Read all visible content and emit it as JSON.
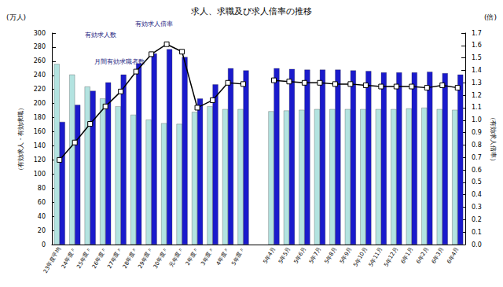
{
  "chart_data": {
    "type": "bar",
    "title": "求人、求職及び求人倍率の推移",
    "y_unit": "(万人)",
    "y2_unit": "(倍)",
    "ylabel": "（有効求人・有効求職）",
    "y2label": "（有効求人倍率）",
    "categories": [
      "23年度平均",
      "24年度〃",
      "25年度〃",
      "26年度〃",
      "27年度〃",
      "28年度〃",
      "29年度〃",
      "30年度〃",
      "元年度〃",
      "2年度〃",
      "3年度〃",
      "4年度〃",
      "5年度〃",
      null,
      "5年4月",
      "5年5月",
      "5年6月",
      "5年7月",
      "5年8月",
      "5年9月",
      "5年10月",
      "5年11月",
      "5年12月",
      "6年1月",
      "6年2月",
      "6年3月",
      "6年4月"
    ],
    "series": [
      {
        "name": "月間有効求職者数",
        "type": "bar",
        "color": "#b3e3e0",
        "values": [
          256,
          241,
          224,
          207,
          196,
          184,
          177,
          172,
          171,
          188,
          196,
          192,
          192,
          null,
          189,
          190,
          191,
          192,
          192,
          192,
          192,
          192,
          192,
          193,
          194,
          192,
          191
        ]
      },
      {
        "name": "有効求人数",
        "type": "bar",
        "color": "#1a1acc",
        "values": [
          174,
          198,
          218,
          230,
          241,
          257,
          271,
          277,
          266,
          207,
          227,
          250,
          247,
          null,
          250,
          249,
          248,
          248,
          248,
          247,
          246,
          244,
          244,
          244,
          245,
          243,
          241
        ]
      },
      {
        "name": "有効求人倍率",
        "type": "line",
        "axis": "y2",
        "color": "#000000",
        "marker": "square",
        "values": [
          0.68,
          0.82,
          0.97,
          1.11,
          1.23,
          1.39,
          1.53,
          1.61,
          1.55,
          1.1,
          1.16,
          1.3,
          1.29,
          null,
          1.32,
          1.31,
          1.3,
          1.3,
          1.29,
          1.29,
          1.28,
          1.27,
          1.27,
          1.27,
          1.26,
          1.28,
          1.26
        ]
      }
    ],
    "ylim": [
      0,
      300
    ],
    "yticks": [
      0,
      20,
      40,
      60,
      80,
      100,
      120,
      140,
      160,
      180,
      200,
      220,
      240,
      260,
      280,
      300
    ],
    "y2lim": [
      0,
      1.7
    ],
    "y2ticks": [
      {
        "value": 0,
        "label": "0.0"
      },
      0.1,
      0.2,
      0.3,
      0.4,
      0.5,
      0.6,
      0.7,
      0.8,
      0.9,
      {
        "value": 1,
        "label": "1.0"
      },
      1.1,
      1.2,
      1.3,
      1.4,
      1.5,
      1.6,
      1.7
    ],
    "grid": false
  }
}
